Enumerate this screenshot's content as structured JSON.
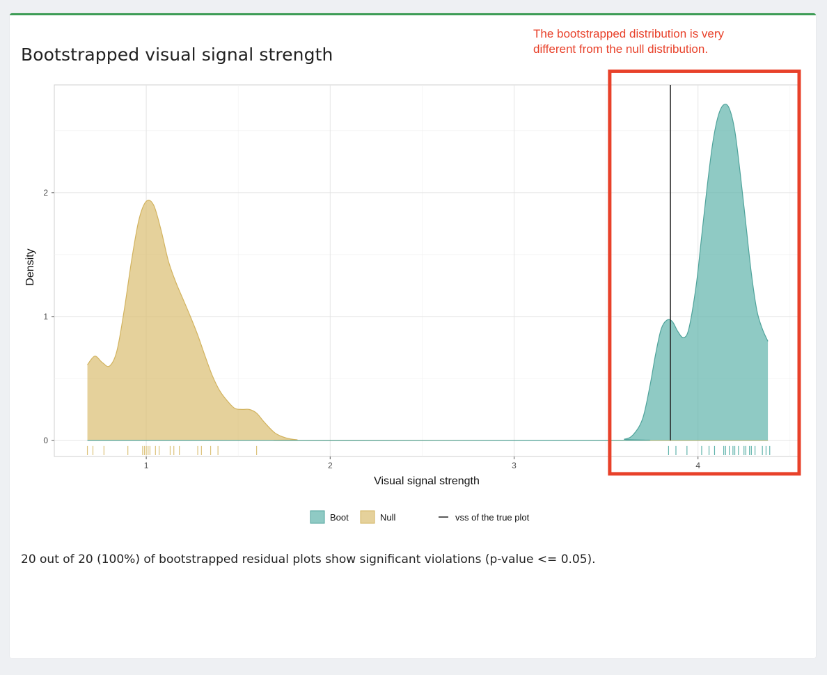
{
  "panel": {
    "title": "Bootstrapped visual signal strength",
    "summary": "20 out of 20 (100%) of bootstrapped residual plots show significant violations (p-value <= 0.05).",
    "accent_color": "#3d9c55"
  },
  "annotation": {
    "line1": "The bootstrapped distribution is very",
    "line2": "different from the null distribution.",
    "color": "#e8412a",
    "box_x_range": [
      3.52,
      4.55
    ],
    "box_y_range": [
      -0.27,
      2.98
    ]
  },
  "chart_data": {
    "type": "area",
    "title": "",
    "xlabel": "Visual signal strength",
    "ylabel": "Density",
    "xlim": [
      0.5,
      4.55
    ],
    "ylim": [
      -0.13,
      2.87
    ],
    "xticks": [
      1,
      2,
      3,
      4
    ],
    "yticks": [
      0,
      1,
      2
    ],
    "grid": true,
    "legend_position": "bottom",
    "reference_line": {
      "name": "vss of the true plot",
      "x": 3.85,
      "color": "#222222"
    },
    "series": [
      {
        "name": "Boot",
        "color": "#5fb3ab",
        "fill_opacity": 0.7,
        "x": [
          0.68,
          3.5,
          3.6,
          3.65,
          3.7,
          3.74,
          3.77,
          3.8,
          3.83,
          3.86,
          3.89,
          3.92,
          3.95,
          3.99,
          4.02,
          4.05,
          4.08,
          4.11,
          4.14,
          4.17,
          4.2,
          4.23,
          4.26,
          4.29,
          4.32,
          4.35,
          4.38
        ],
        "y": [
          0,
          0,
          0.01,
          0.05,
          0.18,
          0.45,
          0.7,
          0.9,
          0.97,
          0.96,
          0.88,
          0.83,
          0.9,
          1.25,
          1.65,
          2.05,
          2.4,
          2.62,
          2.71,
          2.68,
          2.5,
          2.15,
          1.75,
          1.35,
          1.05,
          0.9,
          0.8
        ]
      },
      {
        "name": "Null",
        "color": "#dcc27a",
        "fill_opacity": 0.75,
        "x": [
          0.68,
          0.72,
          0.76,
          0.8,
          0.84,
          0.88,
          0.92,
          0.96,
          1.0,
          1.04,
          1.08,
          1.12,
          1.16,
          1.2,
          1.24,
          1.28,
          1.32,
          1.36,
          1.4,
          1.44,
          1.48,
          1.52,
          1.56,
          1.6,
          1.64,
          1.7,
          1.76,
          1.82,
          1.9,
          4.38
        ],
        "y": [
          0.61,
          0.68,
          0.63,
          0.6,
          0.72,
          1.05,
          1.45,
          1.78,
          1.93,
          1.9,
          1.7,
          1.45,
          1.28,
          1.14,
          1.0,
          0.85,
          0.68,
          0.52,
          0.4,
          0.32,
          0.26,
          0.25,
          0.25,
          0.22,
          0.15,
          0.06,
          0.02,
          0.005,
          0,
          0
        ]
      }
    ],
    "rug": {
      "Null": [
        0.68,
        0.71,
        0.77,
        0.9,
        0.98,
        0.99,
        1.0,
        1.01,
        1.02,
        1.05,
        1.07,
        1.13,
        1.15,
        1.18,
        1.28,
        1.3,
        1.35,
        1.39,
        1.6
      ],
      "Boot": [
        3.84,
        3.88,
        3.94,
        4.02,
        4.06,
        4.09,
        4.14,
        4.15,
        4.17,
        4.19,
        4.2,
        4.22,
        4.25,
        4.26,
        4.28,
        4.29,
        4.31,
        4.35,
        4.37,
        4.39
      ]
    }
  },
  "legend": {
    "boot_label": "Boot",
    "null_label": "Null",
    "line_label": "vss of the true plot"
  }
}
